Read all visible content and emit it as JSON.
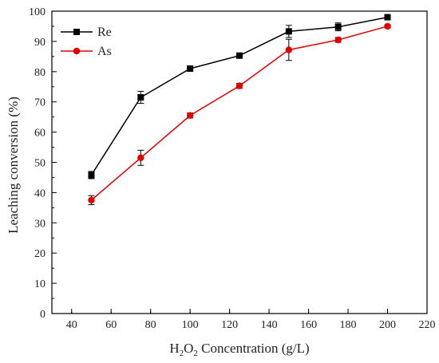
{
  "chart_data": {
    "type": "line",
    "title": "",
    "xlabel": {
      "main": "H",
      "sub1": "2",
      "mid": "O",
      "sub2": "2",
      "tail": " Concentration (g/L)"
    },
    "ylabel": "Leaching conversion (%)",
    "xlim": [
      30,
      220
    ],
    "ylim": [
      0,
      100
    ],
    "xticks": [
      40,
      60,
      80,
      100,
      120,
      140,
      160,
      180,
      200,
      220
    ],
    "yticks": [
      0,
      10,
      20,
      30,
      40,
      50,
      60,
      70,
      80,
      90,
      100
    ],
    "x": [
      50,
      75,
      100,
      125,
      150,
      175,
      200
    ],
    "grid": false,
    "legend_position": "top-left",
    "series": [
      {
        "name": "Re",
        "color": "#000000",
        "marker": "square",
        "values": [
          45.8,
          71.5,
          81.0,
          85.3,
          93.3,
          94.8,
          98.0
        ],
        "error": [
          1.2,
          2.0,
          0.8,
          0.6,
          2.0,
          1.3,
          0.6
        ]
      },
      {
        "name": "As",
        "color": "#e00000",
        "marker": "circle",
        "values": [
          37.5,
          51.5,
          65.5,
          75.3,
          87.2,
          90.5,
          95.0
        ],
        "error": [
          1.5,
          2.5,
          0.8,
          0.8,
          3.5,
          0.8,
          0.5
        ]
      }
    ]
  }
}
